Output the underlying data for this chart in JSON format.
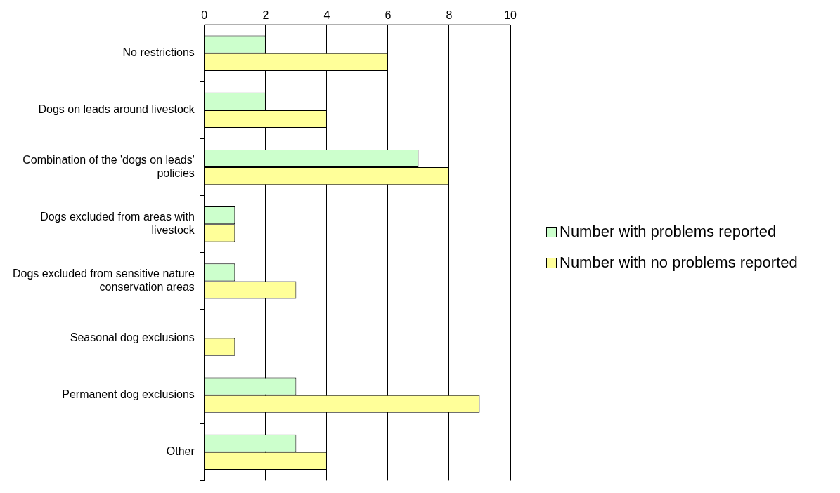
{
  "chart_data": {
    "type": "bar",
    "orientation": "horizontal",
    "categories": [
      "No restrictions",
      "Dogs on leads around livestock",
      "Combination of the 'dogs on leads' policies",
      "Dogs excluded from areas with livestock",
      "Dogs excluded from sensitive nature conservation areas",
      "Seasonal dog exclusions",
      "Permanent dog exclusions",
      "Other"
    ],
    "series": [
      {
        "name": "Number with problems reported",
        "color": "#ccffcc",
        "values": [
          2,
          2,
          7,
          1,
          1,
          0,
          3,
          3
        ]
      },
      {
        "name": "Number with no problems reported",
        "color": "#ffff99",
        "values": [
          6,
          4,
          8,
          1,
          3,
          1,
          9,
          4
        ]
      }
    ],
    "xlim": [
      0,
      10
    ],
    "xticks": [
      0,
      2,
      4,
      6,
      8,
      10
    ],
    "grid": "x",
    "legend": "right"
  }
}
